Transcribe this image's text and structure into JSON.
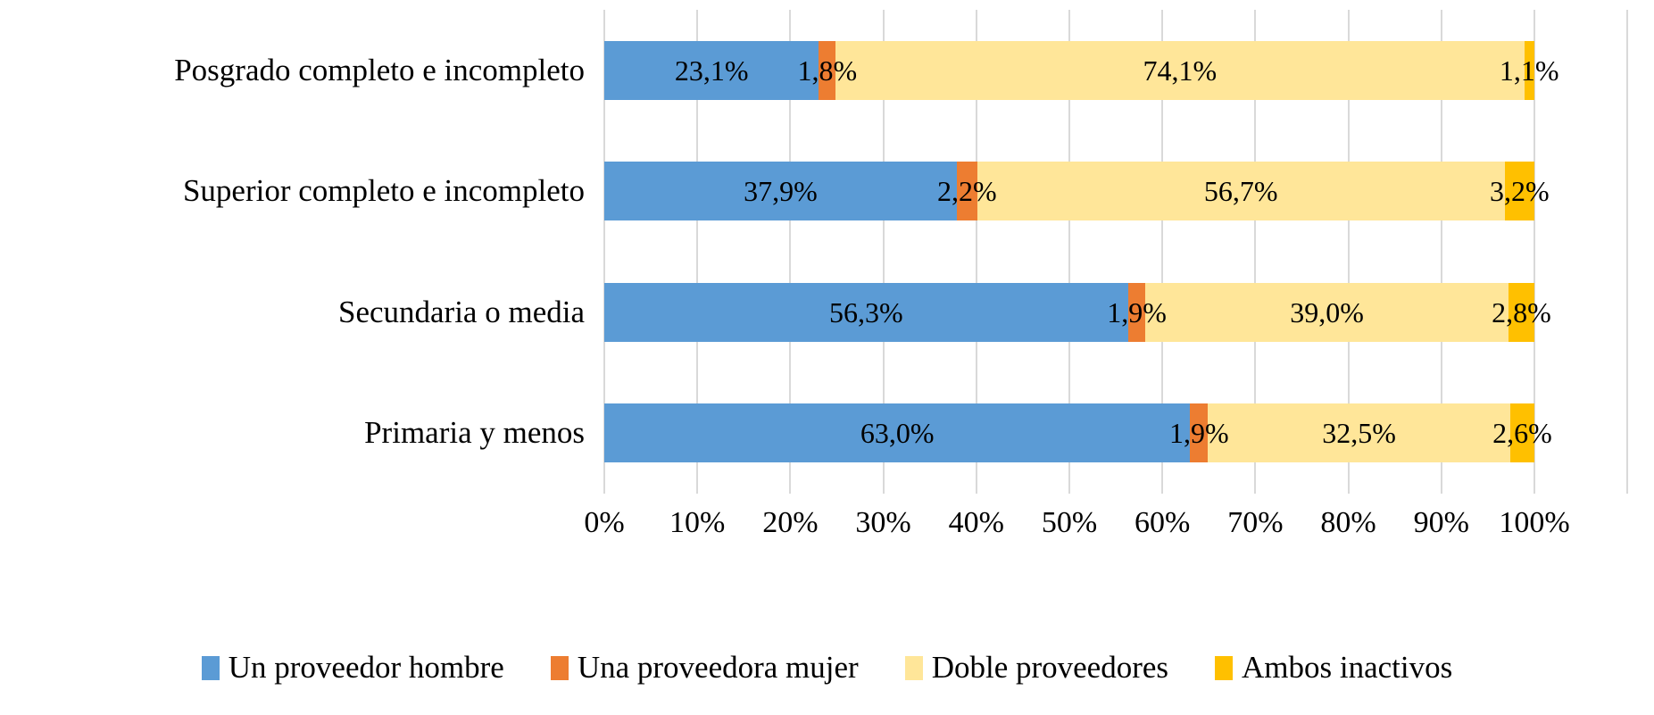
{
  "chart_data": {
    "type": "bar",
    "stacked": true,
    "orientation": "horizontal",
    "title": "",
    "xlabel": "",
    "ylabel": "",
    "value_format": "percent with comma decimal separator",
    "categories": [
      "Posgrado completo e incompleto",
      "Superior completo e incompleto",
      "Secundaria o media",
      "Primaria y menos"
    ],
    "series": [
      {
        "name": "Un proveedor hombre",
        "color": "#5B9BD5",
        "values": [
          23.1,
          37.9,
          56.3,
          63.0
        ],
        "labels": [
          "23,1%",
          "37,9%",
          "56,3%",
          "63,0%"
        ]
      },
      {
        "name": "Una proveedora mujer",
        "color": "#ED7D31",
        "values": [
          1.8,
          2.2,
          1.9,
          1.9
        ],
        "labels": [
          "1,8%",
          "2,2%",
          "1,9%",
          "1,9%"
        ]
      },
      {
        "name": "Doble proveedores",
        "color": "#FFE699",
        "values": [
          74.1,
          56.7,
          39.0,
          32.5
        ],
        "labels": [
          "74,1%",
          "56,7%",
          "39,0%",
          "32,5%"
        ]
      },
      {
        "name": "Ambos inactivos",
        "color": "#FFC000",
        "values": [
          1.1,
          3.2,
          2.8,
          2.6
        ],
        "labels": [
          "1,1%",
          "3,2%",
          "2,8%",
          "2,6%"
        ]
      }
    ],
    "x_axis": {
      "min": 0,
      "max": 100,
      "tick_step": 10,
      "ticks": [
        "0%",
        "10%",
        "20%",
        "30%",
        "40%",
        "50%",
        "60%",
        "70%",
        "80%",
        "90%",
        "100%"
      ],
      "grid": true
    },
    "legend": {
      "position": "bottom",
      "entries": [
        "Un proveedor hombre",
        "Una proveedora mujer",
        "Doble proveedores",
        "Ambos inactivos"
      ]
    },
    "colors": {
      "gridline": "#D9D9D9",
      "text": "#000000",
      "background": "#FFFFFF"
    }
  }
}
